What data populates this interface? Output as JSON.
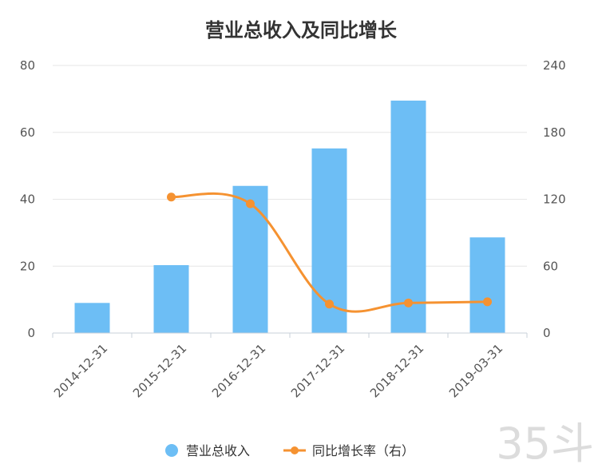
{
  "chart_data": {
    "type": "bar",
    "title": "营业总收入及同比增长",
    "categories": [
      "2014-12-31",
      "2015-12-31",
      "2016-12-31",
      "2017-12-31",
      "2018-12-31",
      "2019-03-31"
    ],
    "series": [
      {
        "name": "营业总收入",
        "type": "bar",
        "axis": "left",
        "color": "#6dbef5",
        "values": [
          9,
          20.3,
          44,
          55.2,
          69.5,
          28.6
        ]
      },
      {
        "name": "同比增长率（右）",
        "type": "line",
        "axis": "right",
        "color": "#f59231",
        "values": [
          null,
          122,
          116,
          26,
          27,
          28
        ]
      }
    ],
    "left_axis": {
      "ylim": [
        0,
        80
      ],
      "ticks": [
        "0",
        "20",
        "40",
        "60",
        "80"
      ]
    },
    "right_axis": {
      "ylim": [
        0,
        240
      ],
      "ticks": [
        "0",
        "60",
        "120",
        "180",
        "240"
      ]
    },
    "grid": true,
    "legend": "bottom"
  },
  "watermark": "35斗"
}
